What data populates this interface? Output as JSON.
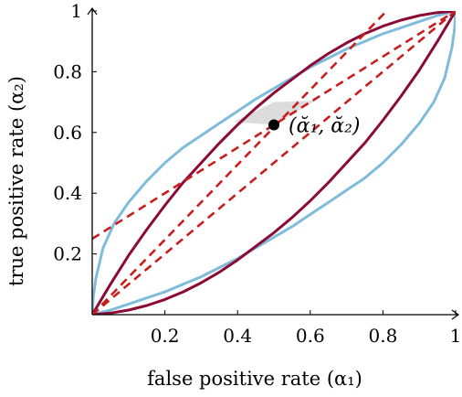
{
  "chart_data": {
    "type": "line",
    "xlabel": "false positive rate (α₁)",
    "ylabel": "true positive rate (α₂)",
    "xlim": [
      0,
      1
    ],
    "ylim": [
      0,
      1
    ],
    "x_ticks": [
      {
        "value": 0.2,
        "label": "0.2"
      },
      {
        "value": 0.4,
        "label": "0.4"
      },
      {
        "value": 0.6,
        "label": "0.6"
      },
      {
        "value": 0.8,
        "label": "0.8"
      },
      {
        "value": 1,
        "label": "1"
      }
    ],
    "y_ticks": [
      {
        "value": 0.2,
        "label": "0.2"
      },
      {
        "value": 0.4,
        "label": "0.4"
      },
      {
        "value": 0.6,
        "label": "0.6"
      },
      {
        "value": 0.8,
        "label": "0.8"
      },
      {
        "value": 1,
        "label": "1"
      }
    ],
    "grid": false,
    "colors": {
      "light_blue": "#7fbcdb",
      "dark_red": "#8b0a36",
      "dashed_red": "#c81e1e",
      "shade": "#dcdcdc"
    },
    "series": [
      {
        "style": "light_blue",
        "points": [
          [
            0,
            0
          ],
          [
            0.003,
            0.06
          ],
          [
            0.01,
            0.12
          ],
          [
            0.03,
            0.22
          ],
          [
            0.06,
            0.3
          ],
          [
            0.1,
            0.37
          ],
          [
            0.15,
            0.44
          ],
          [
            0.2,
            0.5
          ],
          [
            0.25,
            0.55
          ],
          [
            0.3,
            0.59
          ],
          [
            0.35,
            0.63
          ],
          [
            0.4,
            0.67
          ],
          [
            0.45,
            0.71
          ],
          [
            0.5,
            0.745
          ],
          [
            0.55,
            0.78
          ],
          [
            0.6,
            0.815
          ],
          [
            0.65,
            0.845
          ],
          [
            0.7,
            0.875
          ],
          [
            0.75,
            0.9
          ],
          [
            0.8,
            0.925
          ],
          [
            0.85,
            0.945
          ],
          [
            0.9,
            0.965
          ],
          [
            0.95,
            0.985
          ],
          [
            1,
            1
          ]
        ]
      },
      {
        "style": "light_blue",
        "points": [
          [
            0,
            0
          ],
          [
            0.05,
            0.015
          ],
          [
            0.1,
            0.035
          ],
          [
            0.15,
            0.055
          ],
          [
            0.2,
            0.075
          ],
          [
            0.25,
            0.1
          ],
          [
            0.3,
            0.125
          ],
          [
            0.35,
            0.155
          ],
          [
            0.4,
            0.185
          ],
          [
            0.45,
            0.22
          ],
          [
            0.5,
            0.255
          ],
          [
            0.55,
            0.29
          ],
          [
            0.6,
            0.33
          ],
          [
            0.65,
            0.37
          ],
          [
            0.7,
            0.41
          ],
          [
            0.75,
            0.45
          ],
          [
            0.8,
            0.5
          ],
          [
            0.85,
            0.56
          ],
          [
            0.9,
            0.63
          ],
          [
            0.94,
            0.7
          ],
          [
            0.97,
            0.78
          ],
          [
            0.99,
            0.88
          ],
          [
            0.997,
            0.94
          ],
          [
            1,
            1
          ]
        ]
      },
      {
        "style": "dark_red",
        "points": [
          [
            0,
            0
          ],
          [
            0.05,
            0.1
          ],
          [
            0.1,
            0.195
          ],
          [
            0.15,
            0.28
          ],
          [
            0.2,
            0.36
          ],
          [
            0.25,
            0.435
          ],
          [
            0.3,
            0.5
          ],
          [
            0.35,
            0.565
          ],
          [
            0.4,
            0.625
          ],
          [
            0.45,
            0.68
          ],
          [
            0.5,
            0.73
          ],
          [
            0.55,
            0.775
          ],
          [
            0.6,
            0.82
          ],
          [
            0.65,
            0.86
          ],
          [
            0.7,
            0.895
          ],
          [
            0.75,
            0.925
          ],
          [
            0.8,
            0.95
          ],
          [
            0.85,
            0.97
          ],
          [
            0.9,
            0.985
          ],
          [
            0.95,
            0.995
          ],
          [
            1,
            1
          ]
        ]
      },
      {
        "style": "dark_red",
        "points": [
          [
            0,
            0
          ],
          [
            0.05,
            0.005
          ],
          [
            0.1,
            0.015
          ],
          [
            0.15,
            0.03
          ],
          [
            0.2,
            0.05
          ],
          [
            0.25,
            0.075
          ],
          [
            0.3,
            0.105
          ],
          [
            0.35,
            0.14
          ],
          [
            0.4,
            0.18
          ],
          [
            0.45,
            0.225
          ],
          [
            0.5,
            0.27
          ],
          [
            0.55,
            0.32
          ],
          [
            0.6,
            0.375
          ],
          [
            0.65,
            0.435
          ],
          [
            0.7,
            0.5
          ],
          [
            0.75,
            0.565
          ],
          [
            0.8,
            0.64
          ],
          [
            0.85,
            0.72
          ],
          [
            0.9,
            0.805
          ],
          [
            0.95,
            0.9
          ],
          [
            1,
            1
          ]
        ]
      },
      {
        "style": "dashed_red",
        "points": [
          [
            0,
            0
          ],
          [
            0.81,
            1
          ]
        ]
      },
      {
        "style": "dashed_red",
        "points": [
          [
            0,
            0.25
          ],
          [
            1,
            1
          ]
        ]
      },
      {
        "style": "dashed_red",
        "points": [
          [
            0,
            0
          ],
          [
            1,
            1
          ]
        ]
      }
    ],
    "shaded_region": [
      [
        0.39,
        0.635
      ],
      [
        0.5,
        0.625
      ],
      [
        0.615,
        0.705
      ],
      [
        0.5,
        0.7
      ],
      [
        0.39,
        0.635
      ]
    ],
    "point": {
      "x": 0.5,
      "y": 0.625,
      "label": "(ᾰ₁, ᾰ₂)"
    }
  }
}
